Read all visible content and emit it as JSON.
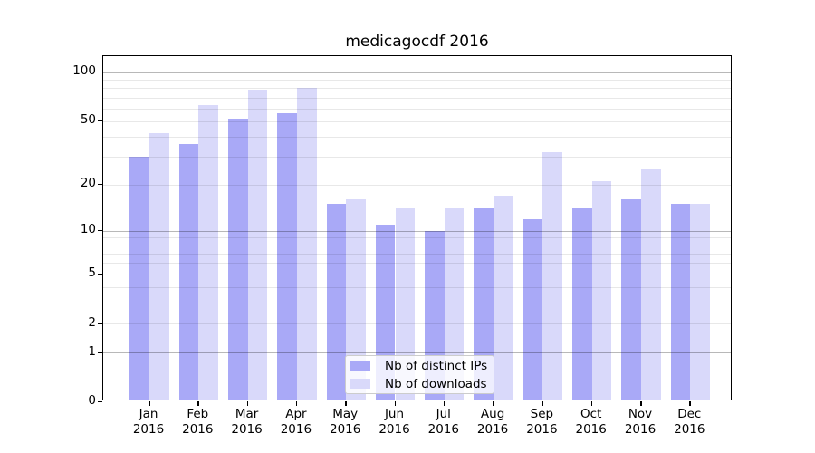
{
  "chart_data": {
    "type": "bar",
    "title": "medicagocdf 2016",
    "categories": [
      "Jan",
      "Feb",
      "Mar",
      "Apr",
      "May",
      "Jun",
      "Jul",
      "Aug",
      "Sep",
      "Oct",
      "Nov",
      "Dec"
    ],
    "year": "2016",
    "series": [
      {
        "name": "Nb of distinct IPs",
        "color": "#a9a9f7",
        "values": [
          30,
          36,
          52,
          56,
          15,
          11,
          10,
          14,
          12,
          14,
          16,
          15
        ]
      },
      {
        "name": "Nb of downloads",
        "color": "#d9d9fa",
        "values": [
          42,
          63,
          78,
          80,
          16,
          14,
          14,
          17,
          32,
          21,
          25,
          15
        ]
      }
    ],
    "yscale": "log1p",
    "ylim": [
      0,
      126
    ],
    "yticks": [
      0,
      1,
      2,
      5,
      10,
      20,
      50,
      100
    ],
    "major_gridlines": [
      1,
      10,
      100
    ],
    "minor_gridlines": [
      2,
      3,
      4,
      5,
      6,
      7,
      8,
      9,
      20,
      30,
      40,
      50,
      60,
      70,
      80,
      90
    ],
    "grid": true,
    "legend_position": "lower-center"
  }
}
